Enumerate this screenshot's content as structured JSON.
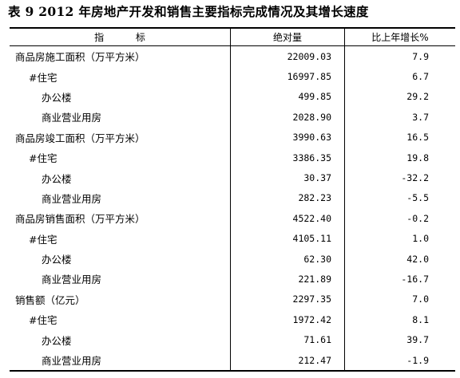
{
  "title": "表 9   2012 年房地产开发和销售主要指标完成情况及其增长速度",
  "table": {
    "headers": [
      "指 标",
      "绝对量",
      "比上年增长%"
    ],
    "rows": [
      {
        "label": "商品房施工面积（万平方米）",
        "level": 0,
        "value": "22009.03",
        "growth": "7.9"
      },
      {
        "label": "#住宅",
        "level": 1,
        "value": "16997.85",
        "growth": "6.7"
      },
      {
        "label": "办公楼",
        "level": 2,
        "value": "499.85",
        "growth": "29.2"
      },
      {
        "label": "商业营业用房",
        "level": 2,
        "value": "2028.90",
        "growth": "3.7"
      },
      {
        "label": "商品房竣工面积（万平方米）",
        "level": 0,
        "value": "3990.63",
        "growth": "16.5"
      },
      {
        "label": "#住宅",
        "level": 1,
        "value": "3386.35",
        "growth": "19.8"
      },
      {
        "label": "办公楼",
        "level": 2,
        "value": "30.37",
        "growth": "-32.2"
      },
      {
        "label": "商业营业用房",
        "level": 2,
        "value": "282.23",
        "growth": "-5.5"
      },
      {
        "label": "商品房销售面积（万平方米）",
        "level": 0,
        "value": "4522.40",
        "growth": "-0.2"
      },
      {
        "label": "#住宅",
        "level": 1,
        "value": "4105.11",
        "growth": "1.0"
      },
      {
        "label": "办公楼",
        "level": 2,
        "value": "62.30",
        "growth": "42.0"
      },
      {
        "label": "商业营业用房",
        "level": 2,
        "value": "221.89",
        "growth": "-16.7"
      },
      {
        "label": "销售额（亿元）",
        "level": 0,
        "value": "2297.35",
        "growth": "7.0"
      },
      {
        "label": "#住宅",
        "level": 1,
        "value": "1972.42",
        "growth": "8.1"
      },
      {
        "label": "办公楼",
        "level": 2,
        "value": "71.61",
        "growth": "39.7"
      },
      {
        "label": "商业营业用房",
        "level": 2,
        "value": "212.47",
        "growth": "-1.9"
      }
    ]
  }
}
